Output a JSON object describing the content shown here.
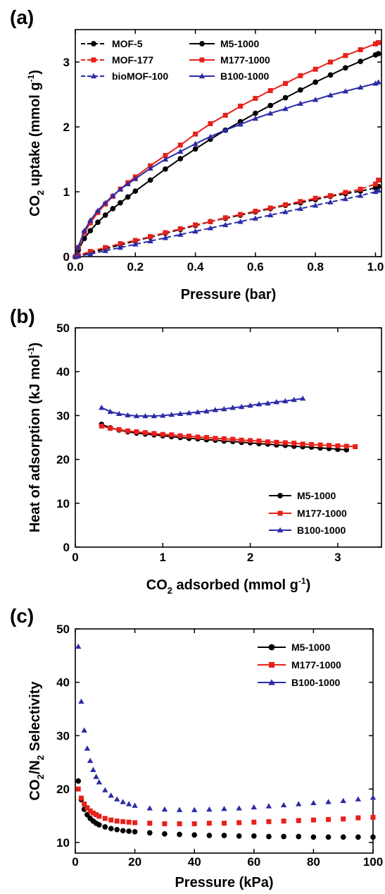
{
  "chart_data": [
    {
      "panel": "(a)",
      "type": "line",
      "xlabel": "Pressure (bar)",
      "ylabel": "CO2 uptake (mmol g-1)",
      "ylabel_parts": {
        "base": "CO",
        "sub": "2",
        "rest": " uptake (mmol g",
        "sup": "-1",
        "end": ")"
      },
      "xlim": [
        0,
        1.02
      ],
      "ylim": [
        0,
        3.5
      ],
      "xticks": [
        0.0,
        0.2,
        0.4,
        0.6,
        0.8,
        1.0
      ],
      "yticks": [
        0,
        1,
        2,
        3
      ],
      "xtick_labels": [
        "0.0",
        "0.2",
        "0.4",
        "0.6",
        "0.8",
        "1.0"
      ],
      "ytick_labels": [
        "0",
        "1",
        "2",
        "3"
      ],
      "legend_position": "top-left",
      "series": [
        {
          "name": "MOF-5",
          "color": "#000000",
          "marker": "circle",
          "dashed": true,
          "x": [
            0,
            0.01,
            0.05,
            0.1,
            0.15,
            0.2,
            0.25,
            0.3,
            0.35,
            0.4,
            0.45,
            0.5,
            0.55,
            0.6,
            0.65,
            0.7,
            0.75,
            0.8,
            0.85,
            0.9,
            0.95,
            1.0,
            1.01
          ],
          "y": [
            0,
            0.01,
            0.06,
            0.12,
            0.18,
            0.24,
            0.3,
            0.36,
            0.42,
            0.48,
            0.54,
            0.59,
            0.64,
            0.69,
            0.74,
            0.79,
            0.83,
            0.88,
            0.93,
            0.97,
            1.01,
            1.06,
            1.08
          ]
        },
        {
          "name": "MOF-177",
          "color": "#e8201a",
          "marker": "square",
          "dashed": true,
          "x": [
            0,
            0.01,
            0.05,
            0.1,
            0.15,
            0.2,
            0.25,
            0.3,
            0.35,
            0.4,
            0.45,
            0.5,
            0.55,
            0.6,
            0.65,
            0.7,
            0.75,
            0.8,
            0.85,
            0.9,
            0.95,
            1.0,
            1.01
          ],
          "y": [
            0,
            0.02,
            0.08,
            0.14,
            0.2,
            0.25,
            0.31,
            0.37,
            0.43,
            0.49,
            0.54,
            0.6,
            0.65,
            0.7,
            0.75,
            0.8,
            0.85,
            0.9,
            0.94,
            0.99,
            1.04,
            1.12,
            1.18
          ]
        },
        {
          "name": "bioMOF-100",
          "color": "#2b2ba8",
          "marker": "triangle",
          "dashed": true,
          "x": [
            0,
            0.01,
            0.05,
            0.1,
            0.15,
            0.2,
            0.25,
            0.3,
            0.35,
            0.4,
            0.45,
            0.5,
            0.55,
            0.6,
            0.65,
            0.7,
            0.75,
            0.8,
            0.85,
            0.9,
            0.95,
            1.0,
            1.01
          ],
          "y": [
            0,
            0.01,
            0.04,
            0.09,
            0.14,
            0.19,
            0.24,
            0.29,
            0.34,
            0.39,
            0.44,
            0.49,
            0.54,
            0.59,
            0.64,
            0.69,
            0.74,
            0.79,
            0.84,
            0.89,
            0.94,
            1.0,
            1.02
          ]
        },
        {
          "name": "M5-1000",
          "color": "#000000",
          "marker": "circle",
          "dashed": false,
          "x": [
            0,
            0.01,
            0.03,
            0.05,
            0.075,
            0.1,
            0.125,
            0.15,
            0.175,
            0.2,
            0.25,
            0.3,
            0.35,
            0.4,
            0.45,
            0.5,
            0.55,
            0.6,
            0.65,
            0.7,
            0.75,
            0.8,
            0.85,
            0.9,
            0.95,
            1.0,
            1.01
          ],
          "y": [
            0,
            0.1,
            0.28,
            0.4,
            0.53,
            0.64,
            0.74,
            0.83,
            0.92,
            1.01,
            1.18,
            1.35,
            1.51,
            1.66,
            1.81,
            1.95,
            2.08,
            2.21,
            2.33,
            2.45,
            2.57,
            2.69,
            2.8,
            2.91,
            3.01,
            3.11,
            3.13
          ]
        },
        {
          "name": "M177-1000",
          "color": "#e8201a",
          "marker": "square",
          "dashed": false,
          "x": [
            0,
            0.01,
            0.03,
            0.05,
            0.075,
            0.1,
            0.125,
            0.15,
            0.175,
            0.2,
            0.25,
            0.3,
            0.35,
            0.4,
            0.45,
            0.5,
            0.55,
            0.6,
            0.65,
            0.7,
            0.75,
            0.8,
            0.85,
            0.9,
            0.95,
            1.0,
            1.01
          ],
          "y": [
            0,
            0.14,
            0.37,
            0.52,
            0.68,
            0.81,
            0.93,
            1.04,
            1.14,
            1.23,
            1.4,
            1.56,
            1.72,
            1.89,
            2.05,
            2.18,
            2.32,
            2.44,
            2.56,
            2.67,
            2.79,
            2.89,
            3.0,
            3.1,
            3.19,
            3.28,
            3.3
          ]
        },
        {
          "name": "B100-1000",
          "color": "#2b2ba8",
          "marker": "triangle",
          "dashed": false,
          "x": [
            0,
            0.01,
            0.03,
            0.05,
            0.075,
            0.1,
            0.125,
            0.15,
            0.175,
            0.2,
            0.25,
            0.3,
            0.35,
            0.4,
            0.45,
            0.5,
            0.55,
            0.6,
            0.65,
            0.7,
            0.75,
            0.8,
            0.85,
            0.9,
            0.95,
            1.0,
            1.01
          ],
          "y": [
            0,
            0.15,
            0.4,
            0.56,
            0.71,
            0.83,
            0.94,
            1.04,
            1.12,
            1.2,
            1.36,
            1.5,
            1.62,
            1.74,
            1.85,
            1.95,
            2.04,
            2.13,
            2.21,
            2.28,
            2.36,
            2.42,
            2.49,
            2.55,
            2.61,
            2.67,
            2.69
          ]
        }
      ]
    },
    {
      "panel": "(b)",
      "type": "line",
      "xlabel": "CO2 adsorbed (mmol g-1)",
      "xlabel_parts": {
        "base": "CO",
        "sub": "2",
        "rest": " adsorbed (mmol g",
        "sup": "-1",
        "end": ")"
      },
      "ylabel": "Heat of adsorption (kJ mol-1)",
      "ylabel_parts": {
        "base": "Heat of adsorption (kJ mol",
        "sup": "-1",
        "end": ")"
      },
      "xlim": [
        0,
        3.5
      ],
      "ylim": [
        0,
        50
      ],
      "xticks": [
        0,
        1,
        2,
        3
      ],
      "yticks": [
        0,
        10,
        20,
        30,
        40,
        50
      ],
      "xtick_labels": [
        "0",
        "1",
        "2",
        "3"
      ],
      "ytick_labels": [
        "0",
        "10",
        "20",
        "30",
        "40",
        "50"
      ],
      "legend_position": "bottom-right",
      "series": [
        {
          "name": "M5-1000",
          "color": "#000000",
          "marker": "circle",
          "x": [
            0.3,
            0.4,
            0.5,
            0.6,
            0.7,
            0.8,
            0.9,
            1.0,
            1.1,
            1.2,
            1.3,
            1.4,
            1.5,
            1.6,
            1.7,
            1.8,
            1.9,
            2.0,
            2.1,
            2.2,
            2.3,
            2.4,
            2.5,
            2.6,
            2.7,
            2.8,
            2.9,
            3.0,
            3.1
          ],
          "y": [
            28.0,
            27.2,
            26.7,
            26.3,
            26.0,
            25.8,
            25.6,
            25.4,
            25.2,
            25.0,
            24.8,
            24.7,
            24.5,
            24.4,
            24.2,
            24.1,
            23.9,
            23.8,
            23.6,
            23.5,
            23.3,
            23.2,
            23.0,
            22.9,
            22.8,
            22.6,
            22.5,
            22.3,
            22.2
          ]
        },
        {
          "name": "M177-1000",
          "color": "#e8201a",
          "marker": "square",
          "x": [
            0.3,
            0.4,
            0.5,
            0.6,
            0.7,
            0.8,
            0.9,
            1.0,
            1.1,
            1.2,
            1.3,
            1.4,
            1.5,
            1.6,
            1.7,
            1.8,
            1.9,
            2.0,
            2.1,
            2.2,
            2.3,
            2.4,
            2.5,
            2.6,
            2.7,
            2.8,
            2.9,
            3.0,
            3.1,
            3.2
          ],
          "y": [
            27.6,
            27.1,
            26.8,
            26.5,
            26.3,
            26.1,
            25.9,
            25.7,
            25.6,
            25.4,
            25.3,
            25.1,
            25.0,
            24.8,
            24.7,
            24.6,
            24.4,
            24.3,
            24.2,
            24.0,
            23.9,
            23.8,
            23.7,
            23.5,
            23.4,
            23.3,
            23.2,
            23.1,
            23.0,
            22.9
          ]
        },
        {
          "name": "B100-1000",
          "color": "#2b2ba8",
          "marker": "triangle",
          "x": [
            0.3,
            0.4,
            0.5,
            0.6,
            0.7,
            0.8,
            0.9,
            1.0,
            1.1,
            1.2,
            1.3,
            1.4,
            1.5,
            1.6,
            1.7,
            1.8,
            1.9,
            2.0,
            2.1,
            2.2,
            2.3,
            2.4,
            2.5,
            2.6
          ],
          "y": [
            31.8,
            30.9,
            30.4,
            30.1,
            29.9,
            29.9,
            29.9,
            30.0,
            30.2,
            30.4,
            30.6,
            30.8,
            31.0,
            31.3,
            31.5,
            31.8,
            32.0,
            32.3,
            32.6,
            32.8,
            33.1,
            33.3,
            33.6,
            33.9
          ]
        }
      ]
    },
    {
      "panel": "(c)",
      "type": "scatter",
      "xlabel": "Pressure (kPa)",
      "ylabel": "CO2/N2 Selectivity",
      "ylabel_parts": {
        "base": "CO",
        "sub": "2",
        "rest": "/N",
        "sub2": "2",
        "end": " Selectivity"
      },
      "xlim": [
        0,
        100
      ],
      "ylim": [
        8,
        50
      ],
      "xticks": [
        0,
        20,
        40,
        60,
        80,
        100
      ],
      "yticks": [
        10,
        20,
        30,
        40,
        50
      ],
      "xtick_labels": [
        "0",
        "20",
        "40",
        "60",
        "80",
        "100"
      ],
      "ytick_labels": [
        "10",
        "20",
        "30",
        "40",
        "50"
      ],
      "legend_position": "top-right",
      "series": [
        {
          "name": "M5-1000",
          "color": "#000000",
          "marker": "circle",
          "x": [
            1,
            2,
            3,
            4,
            5,
            6,
            7,
            8,
            10,
            12,
            14,
            16,
            18,
            20,
            25,
            30,
            35,
            40,
            45,
            50,
            55,
            60,
            65,
            70,
            75,
            80,
            85,
            90,
            95,
            100
          ],
          "y": [
            21.5,
            18.0,
            16.2,
            15.2,
            14.5,
            14.0,
            13.6,
            13.3,
            12.9,
            12.6,
            12.4,
            12.2,
            12.1,
            12.0,
            11.8,
            11.6,
            11.5,
            11.4,
            11.3,
            11.3,
            11.2,
            11.2,
            11.1,
            11.1,
            11.1,
            11.0,
            11.0,
            11.0,
            11.0,
            11.0
          ]
        },
        {
          "name": "M177-1000",
          "color": "#e8201a",
          "marker": "square",
          "x": [
            1,
            2,
            3,
            4,
            5,
            6,
            7,
            8,
            10,
            12,
            14,
            16,
            18,
            20,
            25,
            30,
            35,
            40,
            45,
            50,
            55,
            60,
            65,
            70,
            75,
            80,
            85,
            90,
            95,
            100
          ],
          "y": [
            20.0,
            18.3,
            17.2,
            16.5,
            15.9,
            15.5,
            15.2,
            14.9,
            14.5,
            14.2,
            14.0,
            13.9,
            13.8,
            13.7,
            13.6,
            13.5,
            13.5,
            13.5,
            13.6,
            13.6,
            13.7,
            13.8,
            13.9,
            14.0,
            14.1,
            14.2,
            14.3,
            14.4,
            14.6,
            14.7
          ]
        },
        {
          "name": "B100-1000",
          "color": "#2b2ba8",
          "marker": "triangle",
          "x": [
            1,
            2,
            3,
            4,
            5,
            6,
            7,
            8,
            10,
            12,
            14,
            16,
            18,
            20,
            25,
            30,
            35,
            40,
            45,
            50,
            55,
            60,
            65,
            70,
            75,
            80,
            85,
            90,
            95,
            100
          ],
          "y": [
            46.7,
            36.4,
            31.0,
            27.6,
            25.3,
            23.6,
            22.3,
            21.3,
            19.8,
            18.8,
            18.1,
            17.6,
            17.2,
            16.9,
            16.4,
            16.2,
            16.1,
            16.1,
            16.2,
            16.3,
            16.4,
            16.6,
            16.8,
            17.0,
            17.2,
            17.4,
            17.6,
            17.8,
            18.1,
            18.4
          ]
        }
      ]
    }
  ]
}
